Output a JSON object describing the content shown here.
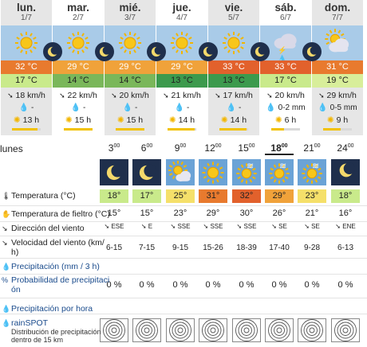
{
  "days": [
    {
      "name": "lun.",
      "date": "1/7",
      "max": "32 °C",
      "min": "17 °C",
      "wind": "18 km/h",
      "precip": "-",
      "sun": "13 h",
      "sun_fraction": 0.9,
      "shaded": true,
      "icon": "sun-icon",
      "max_color": "#e87a2e",
      "min_color": "#c9ea8b"
    },
    {
      "name": "mar.",
      "date": "2/7",
      "max": "29 °C",
      "min": "14 °C",
      "wind": "22 km/h",
      "precip": "-",
      "sun": "15 h",
      "sun_fraction": 1.0,
      "shaded": false,
      "icon": "sun-icon",
      "max_color": "#f0a23a",
      "min_color": "#7ab75a"
    },
    {
      "name": "mié.",
      "date": "3/7",
      "max": "29 °C",
      "min": "14 °C",
      "wind": "20 km/h",
      "precip": "-",
      "sun": "15 h",
      "sun_fraction": 1.0,
      "shaded": true,
      "icon": "sun-icon",
      "max_color": "#f0a23a",
      "min_color": "#7ab75a"
    },
    {
      "name": "jue.",
      "date": "4/7",
      "max": "29 °C",
      "min": "13 °C",
      "wind": "21 km/h",
      "precip": "-",
      "sun": "14 h",
      "sun_fraction": 0.95,
      "shaded": false,
      "icon": "sun-icon",
      "max_color": "#f0a23a",
      "min_color": "#3c9a4d"
    },
    {
      "name": "vie.",
      "date": "5/7",
      "max": "33 °C",
      "min": "13 °C",
      "wind": "17 km/h",
      "precip": "-",
      "sun": "14 h",
      "sun_fraction": 0.95,
      "shaded": true,
      "icon": "sun-icon",
      "max_color": "#e2612c",
      "min_color": "#3c9a4d"
    },
    {
      "name": "sáb.",
      "date": "6/7",
      "max": "33 °C",
      "min": "17 °C",
      "wind": "20 km/h",
      "precip": "0-2 mm",
      "sun": "6 h",
      "sun_fraction": 0.45,
      "shaded": false,
      "icon": "thunderstorm-icon",
      "max_color": "#e2612c",
      "min_color": "#c9ea8b"
    },
    {
      "name": "dom.",
      "date": "7/7",
      "max": "31 °C",
      "min": "19 °C",
      "wind": "29 km/h",
      "precip": "0-5 mm",
      "sun": "9 h",
      "sun_fraction": 0.6,
      "shaded": true,
      "icon": "rain-cloud-icon",
      "max_color": "#e87a2e",
      "min_color": "#d8ee9a"
    }
  ],
  "hourly": {
    "day_label": "lunes",
    "hours": [
      {
        "h": "3",
        "sup": "00",
        "current": false,
        "icon": "moon-icon",
        "night": true,
        "temp": "18°",
        "temp_color": "#c9ea8b",
        "feels": "15°",
        "dir": "ESE",
        "speed": "6-15",
        "precip": "",
        "prob": "0 %"
      },
      {
        "h": "6",
        "sup": "00",
        "current": false,
        "icon": "moon-icon",
        "night": true,
        "temp": "17°",
        "temp_color": "#c9ea8b",
        "feels": "15°",
        "dir": "E",
        "speed": "7-15",
        "precip": "",
        "prob": "0 %"
      },
      {
        "h": "9",
        "sup": "00",
        "current": false,
        "icon": "sun-cloud-icon",
        "night": false,
        "temp": "25°",
        "temp_color": "#f5e06a",
        "feels": "23°",
        "dir": "SSE",
        "speed": "9-15",
        "precip": "",
        "prob": "0 %"
      },
      {
        "h": "12",
        "sup": "00",
        "current": false,
        "icon": "sun-icon",
        "night": false,
        "temp": "31°",
        "temp_color": "#e87a2e",
        "feels": "29°",
        "dir": "SSE",
        "speed": "15-26",
        "precip": "",
        "prob": "0 %"
      },
      {
        "h": "15",
        "sup": "00",
        "current": false,
        "icon": "sun-wind-icon",
        "night": false,
        "temp": "32°",
        "temp_color": "#e2612c",
        "feels": "30°",
        "dir": "SSE",
        "speed": "18-39",
        "precip": "",
        "prob": "0 %"
      },
      {
        "h": "18",
        "sup": "00",
        "current": true,
        "icon": "sun-wind-icon",
        "night": false,
        "temp": "29°",
        "temp_color": "#f0a23a",
        "feels": "26°",
        "dir": "SE",
        "speed": "17-40",
        "precip": "",
        "prob": "0 %"
      },
      {
        "h": "21",
        "sup": "00",
        "current": false,
        "icon": "sun-wind-icon",
        "night": false,
        "temp": "23°",
        "temp_color": "#f5e06a",
        "feels": "21°",
        "dir": "SE",
        "speed": "9-28",
        "precip": "",
        "prob": "0 %"
      },
      {
        "h": "24",
        "sup": "00",
        "current": false,
        "icon": "moon-cloud-icon",
        "night": true,
        "temp": "18°",
        "temp_color": "#c9ea8b",
        "feels": "16°",
        "dir": "ENE",
        "speed": "6-13",
        "precip": "",
        "prob": "0 %"
      }
    ]
  },
  "rows": {
    "temperature": "Temperatura (°C)",
    "feels_like": "Temperatura de fieltro (°C)",
    "wind_dir": "Dirección del viento",
    "wind_speed": "Velocidad del viento (km/",
    "wind_speed_cont": "h)",
    "precipitation": "Precipitación (mm / 3 h)",
    "probability": "Probabilidad de precipitaci",
    "probability_cont": "ón",
    "hourly_precip": "Precipitación por hora",
    "rainspot": "rainSPOT",
    "rainspot_sub": "Distribución de precipitación",
    "rainspot_sub2": "dentro de 15 km"
  }
}
